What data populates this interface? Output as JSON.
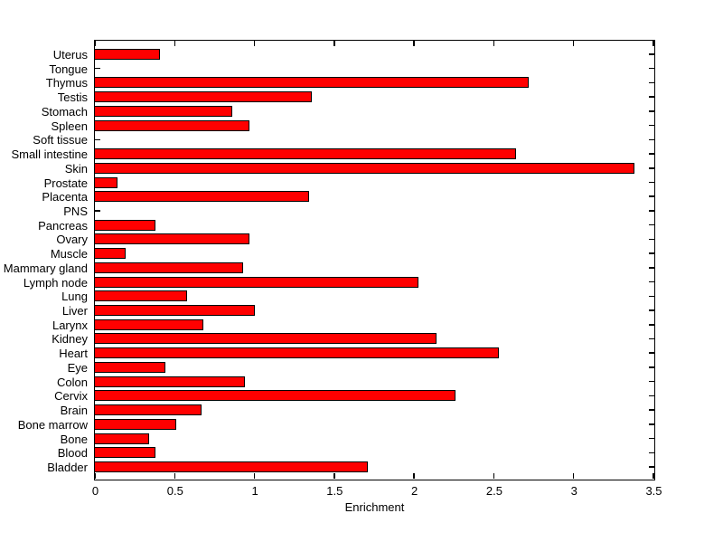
{
  "chart_data": {
    "type": "bar",
    "orientation": "horizontal",
    "title": "",
    "xlabel": "Enrichment",
    "ylabel": "",
    "categories": [
      "Uterus",
      "Tongue",
      "Thymus",
      "Testis",
      "Stomach",
      "Spleen",
      "Soft tissue",
      "Small intestine",
      "Skin",
      "Prostate",
      "Placenta",
      "PNS",
      "Pancreas",
      "Ovary",
      "Muscle",
      "Mammary gland",
      "Lymph node",
      "Lung",
      "Liver",
      "Larynx",
      "Kidney",
      "Heart",
      "Eye",
      "Colon",
      "Cervix",
      "Brain",
      "Bone marrow",
      "Bone",
      "Blood",
      "Bladder"
    ],
    "values": [
      0.41,
      0,
      2.72,
      1.36,
      0.86,
      0.97,
      0,
      2.64,
      3.38,
      0.14,
      1.34,
      0,
      0.38,
      0.97,
      0.19,
      0.93,
      2.03,
      0.58,
      1.0,
      0.68,
      2.14,
      2.53,
      0.44,
      0.94,
      2.26,
      0.67,
      0.51,
      0.34,
      0.38,
      1.71
    ],
    "xlim": [
      0,
      3.5
    ],
    "xticks": [
      0,
      0.5,
      1,
      1.5,
      2,
      2.5,
      3,
      3.5
    ],
    "xtick_labels": [
      "0",
      "0.5",
      "1",
      "1.5",
      "2",
      "2.5",
      "3",
      "3.5"
    ],
    "bar_color": "#ff0000",
    "bar_edge_color": "#000000",
    "axis_color": "#000000",
    "background_color": "#ffffff",
    "grid": false,
    "legend": null
  }
}
